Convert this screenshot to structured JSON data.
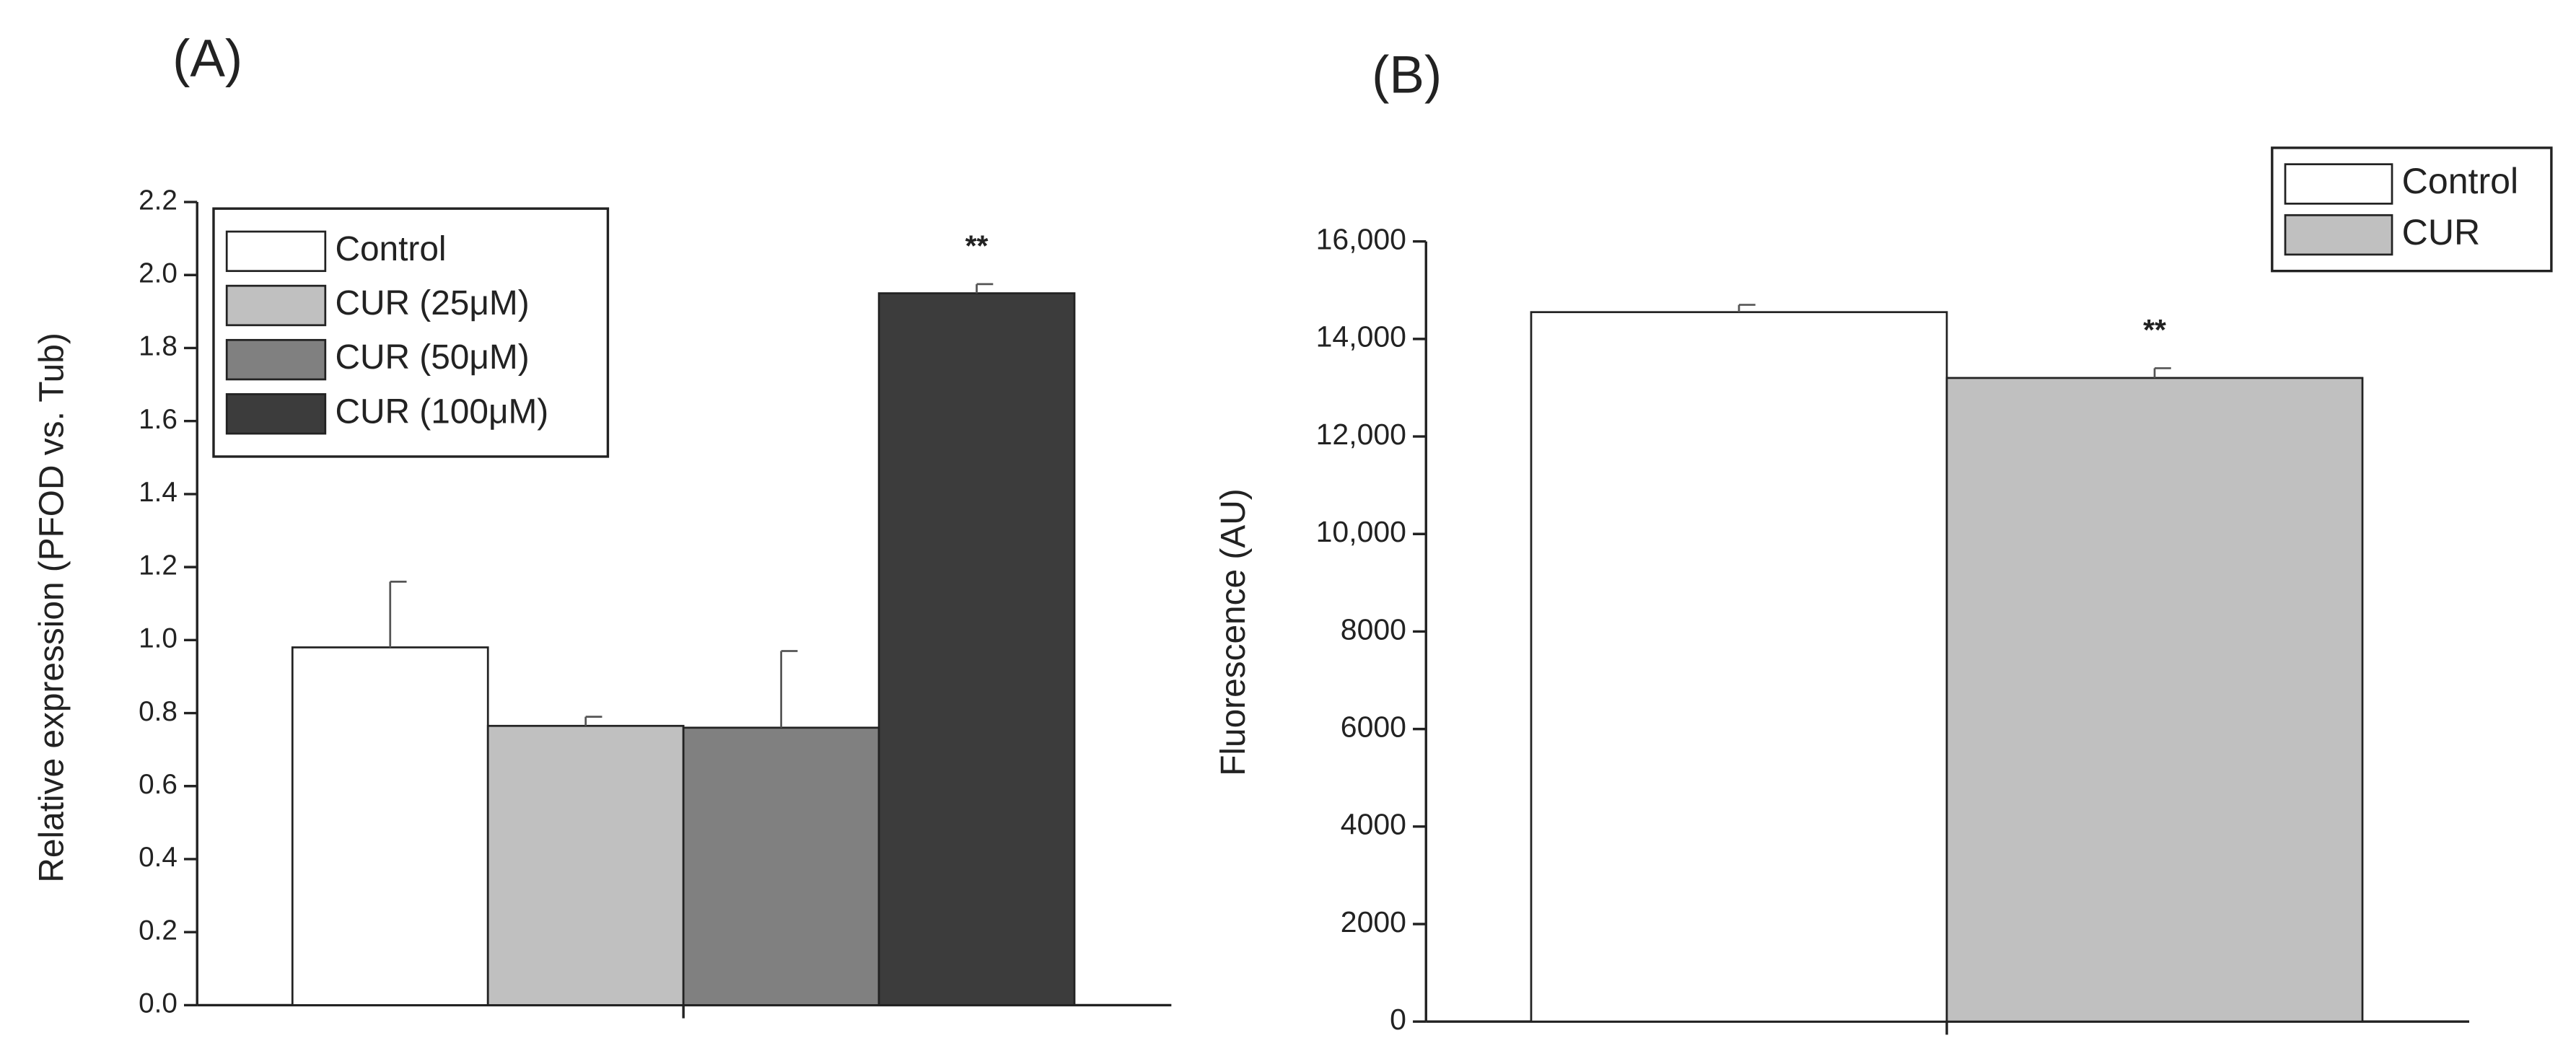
{
  "chart_data": [
    {
      "type": "bar",
      "panel_label": "(A)",
      "y_label": "Relative expression (PFOD vs. Tub)",
      "ylim": [
        0,
        2.2
      ],
      "yticks": [
        {
          "value": 0,
          "label": "0.0"
        },
        0.2,
        0.4,
        0.6,
        0.8,
        {
          "value": 1,
          "label": "1.0"
        },
        1.2,
        1.4,
        1.6,
        1.8,
        {
          "value": 2,
          "label": "2.0"
        },
        2.2
      ],
      "legend": "upper left",
      "series": [
        {
          "name": "Control",
          "color": "#ffffff",
          "values": [
            0.98
          ],
          "errors": [
            0.18
          ]
        },
        {
          "name": "CUR (25μM)",
          "color": "#c0c0c0",
          "values": [
            0.765
          ],
          "errors": [
            0.025
          ]
        },
        {
          "name": "CUR (50μM)",
          "color": "#808080",
          "values": [
            0.76
          ],
          "errors": [
            0.21
          ]
        },
        {
          "name": "CUR (100μM)",
          "color": "#3c3c3c",
          "values": [
            1.95
          ],
          "errors": [
            0.025
          ],
          "annotation": "**"
        }
      ]
    },
    {
      "type": "bar",
      "panel_label": "(B)",
      "y_label": "Fluorescence (AU)",
      "ylim": [
        0,
        16000
      ],
      "yticks": [
        0,
        2000,
        4000,
        6000,
        8000,
        {
          "value": 10000,
          "label": "10,000"
        },
        {
          "value": 12000,
          "label": "12,000"
        },
        {
          "value": 14000,
          "label": "14,000"
        },
        {
          "value": 16000,
          "label": "16,000"
        }
      ],
      "legend": "upper right",
      "series": [
        {
          "name": "Control",
          "color": "#ffffff",
          "values": [
            14550
          ],
          "errors": [
            150
          ]
        },
        {
          "name": "CUR",
          "color": "#c0c0c0",
          "values": [
            13200
          ],
          "errors": [
            200
          ],
          "annotation": "**"
        }
      ]
    }
  ]
}
